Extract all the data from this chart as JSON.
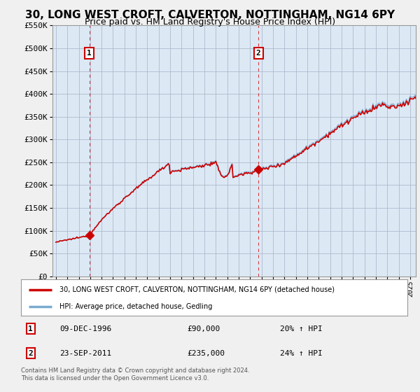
{
  "title": "30, LONG WEST CROFT, CALVERTON, NOTTINGHAM, NG14 6PY",
  "subtitle": "Price paid vs. HM Land Registry's House Price Index (HPI)",
  "legend_line1": "30, LONG WEST CROFT, CALVERTON, NOTTINGHAM, NG14 6PY (detached house)",
  "legend_line2": "HPI: Average price, detached house, Gedling",
  "annotation1_date": "09-DEC-1996",
  "annotation1_price": "£90,000",
  "annotation1_hpi": "20% ↑ HPI",
  "annotation2_date": "23-SEP-2011",
  "annotation2_price": "£235,000",
  "annotation2_hpi": "24% ↑ HPI",
  "footnote": "Contains HM Land Registry data © Crown copyright and database right 2024.\nThis data is licensed under the Open Government Licence v3.0.",
  "sale1_year": 1996.92,
  "sale1_value": 90000,
  "sale2_year": 2011.72,
  "sale2_value": 235000,
  "hpi_color": "#7aaad0",
  "price_color": "#cc0000",
  "dashed_color": "#cc0000",
  "ylim_min": 0,
  "ylim_max": 550000,
  "xlim_min": 1993.7,
  "xlim_max": 2025.5,
  "background_color": "#f0f0f0",
  "plot_bg_color": "#dce9f5",
  "grid_color": "#aaaacc",
  "title_fontsize": 11,
  "subtitle_fontsize": 9
}
